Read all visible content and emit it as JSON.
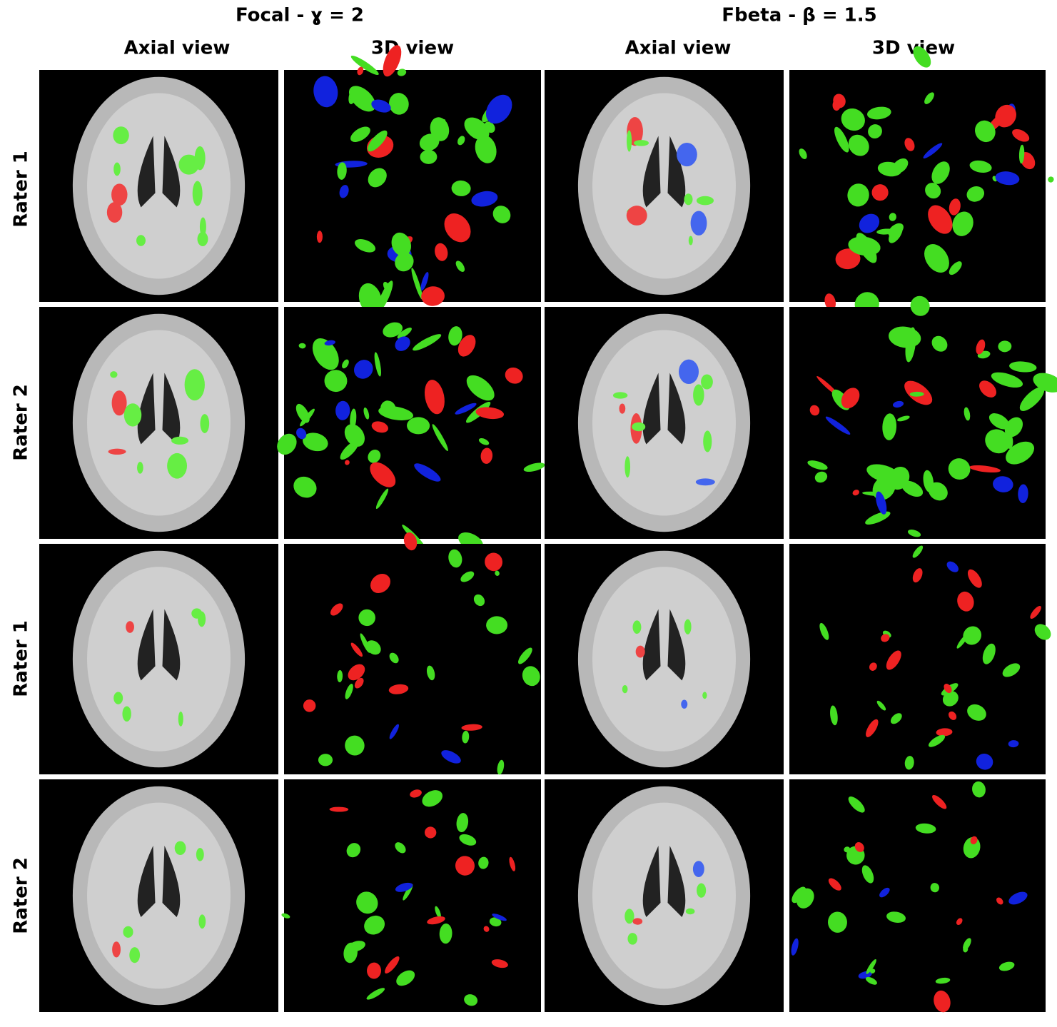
{
  "column_groups": [
    {
      "title": "Focal - ɣ = 2",
      "columns": [
        "Axial view",
        "3D view"
      ]
    },
    {
      "title": "Fbeta - β = 1.5",
      "columns": [
        "Axial view",
        "3D view"
      ]
    }
  ],
  "row_labels": [
    "Rater 1",
    "Rater 2",
    "Rater 1",
    "Rater 2"
  ]
}
